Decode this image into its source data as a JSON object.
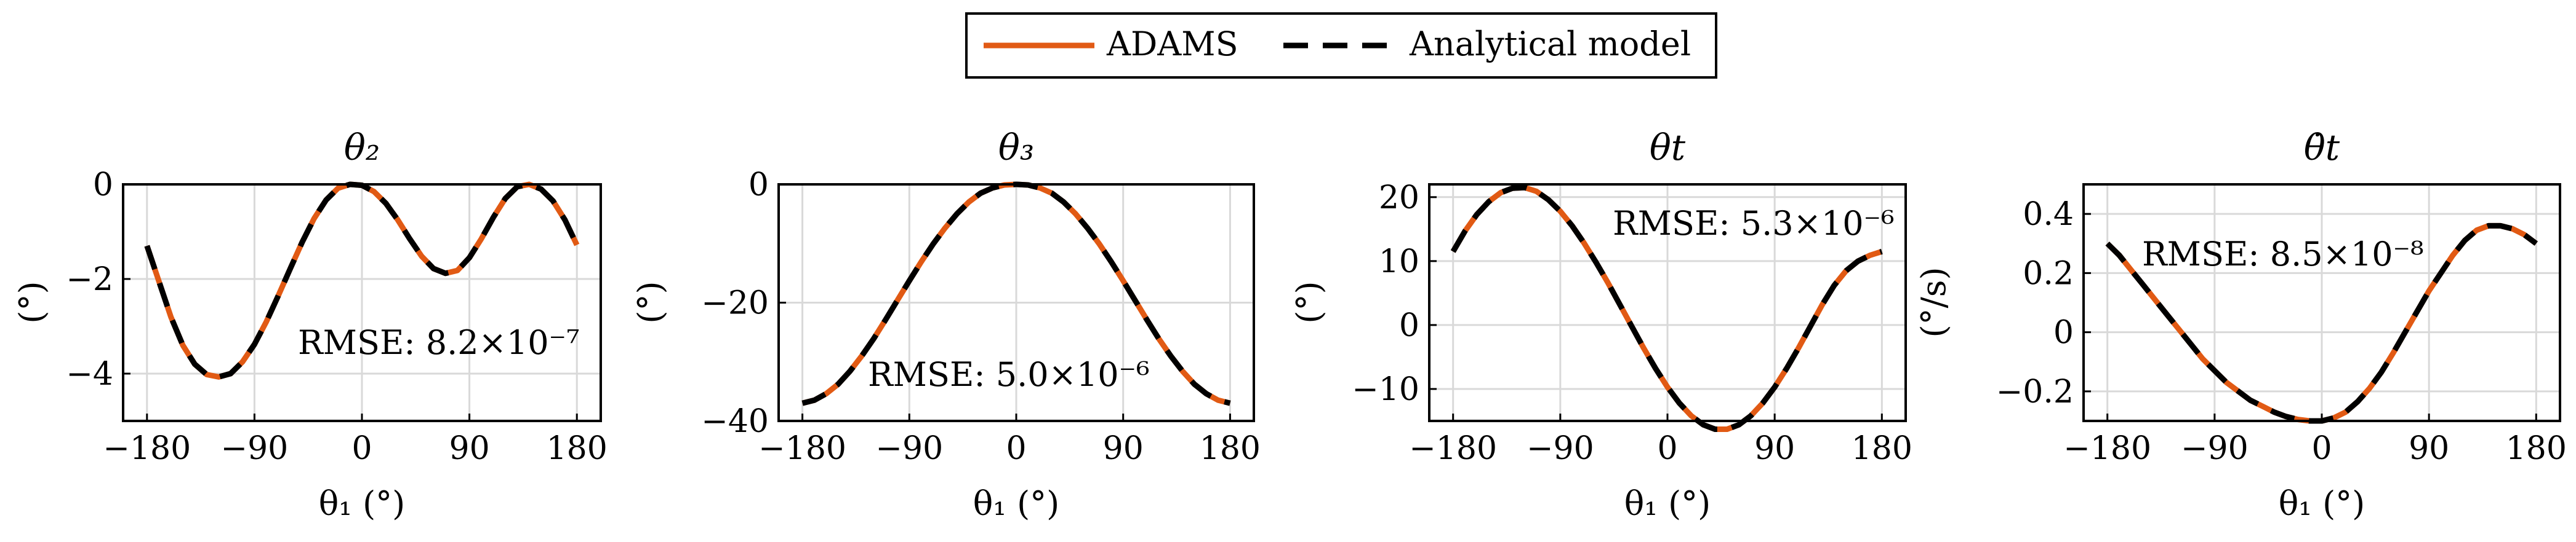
{
  "legend": {
    "items": [
      {
        "label": "ADAMS",
        "color": "#E15A14",
        "style": "solid"
      },
      {
        "label": "Analytical model",
        "color": "#000000",
        "style": "dashed"
      }
    ]
  },
  "chart_data": [
    {
      "type": "line",
      "title": "θ₂",
      "xlabel": "θ₁ (°)",
      "ylabel": "(°)",
      "xlim": [
        -200,
        200
      ],
      "ylim": [
        -5,
        0
      ],
      "xticks": [
        "−180",
        "−90",
        "0",
        "90",
        "180"
      ],
      "yticks": [
        "−4",
        "−2",
        "0"
      ],
      "ytick_values": [
        -4,
        -2,
        0
      ],
      "grid": true,
      "annotation": "RMSE: 8.2×10⁻⁷",
      "x": [
        -180,
        -170,
        -160,
        -150,
        -140,
        -130,
        -120,
        -110,
        -100,
        -90,
        -80,
        -70,
        -60,
        -50,
        -40,
        -30,
        -20,
        -10,
        0,
        10,
        20,
        30,
        40,
        50,
        60,
        70,
        80,
        90,
        100,
        110,
        120,
        130,
        140,
        150,
        160,
        170,
        180
      ],
      "series": [
        {
          "name": "ADAMS",
          "values": [
            -1.3,
            -2.05,
            -2.8,
            -3.4,
            -3.8,
            -4.02,
            -4.07,
            -4.0,
            -3.75,
            -3.38,
            -2.9,
            -2.35,
            -1.78,
            -1.22,
            -0.72,
            -0.33,
            -0.08,
            0.0,
            -0.02,
            -0.15,
            -0.4,
            -0.75,
            -1.15,
            -1.52,
            -1.78,
            -1.88,
            -1.82,
            -1.55,
            -1.15,
            -0.7,
            -0.3,
            -0.05,
            0.0,
            -0.1,
            -0.35,
            -0.75,
            -1.28
          ]
        },
        {
          "name": "Analytical model",
          "values": [
            -1.3,
            -2.05,
            -2.8,
            -3.4,
            -3.8,
            -4.02,
            -4.07,
            -4.0,
            -3.75,
            -3.38,
            -2.9,
            -2.35,
            -1.78,
            -1.22,
            -0.72,
            -0.33,
            -0.08,
            0.0,
            -0.02,
            -0.15,
            -0.4,
            -0.75,
            -1.15,
            -1.52,
            -1.78,
            -1.88,
            -1.82,
            -1.55,
            -1.15,
            -0.7,
            -0.3,
            -0.05,
            0.0,
            -0.1,
            -0.35,
            -0.75,
            -1.28
          ]
        }
      ]
    },
    {
      "type": "line",
      "title": "θ₃",
      "xlabel": "θ₁ (°)",
      "ylabel": "(°)",
      "xlim": [
        -200,
        200
      ],
      "ylim": [
        -40,
        0
      ],
      "xticks": [
        "−180",
        "−90",
        "0",
        "90",
        "180"
      ],
      "yticks": [
        "−40",
        "−20",
        "0"
      ],
      "ytick_values": [
        -40,
        -20,
        0
      ],
      "grid": true,
      "annotation": "RMSE: 5.0×10⁻⁶",
      "x": [
        -180,
        -170,
        -160,
        -150,
        -140,
        -130,
        -120,
        -110,
        -100,
        -90,
        -80,
        -70,
        -60,
        -50,
        -40,
        -30,
        -20,
        -10,
        0,
        10,
        20,
        30,
        40,
        50,
        60,
        70,
        80,
        90,
        100,
        110,
        120,
        130,
        140,
        150,
        160,
        170,
        180
      ],
      "series": [
        {
          "name": "ADAMS",
          "values": [
            -37.0,
            -36.5,
            -35.4,
            -33.8,
            -31.6,
            -29.0,
            -26.1,
            -22.9,
            -19.6,
            -16.3,
            -13.1,
            -10.1,
            -7.4,
            -5.0,
            -3.0,
            -1.5,
            -0.6,
            -0.1,
            0.0,
            -0.1,
            -0.6,
            -1.5,
            -3.0,
            -5.0,
            -7.4,
            -10.1,
            -13.1,
            -16.3,
            -19.6,
            -22.9,
            -26.1,
            -29.0,
            -31.6,
            -33.8,
            -35.4,
            -36.5,
            -37.0
          ]
        },
        {
          "name": "Analytical model",
          "values": [
            -37.0,
            -36.5,
            -35.4,
            -33.8,
            -31.6,
            -29.0,
            -26.1,
            -22.9,
            -19.6,
            -16.3,
            -13.1,
            -10.1,
            -7.4,
            -5.0,
            -3.0,
            -1.5,
            -0.6,
            -0.1,
            0.0,
            -0.1,
            -0.6,
            -1.5,
            -3.0,
            -5.0,
            -7.4,
            -10.1,
            -13.1,
            -16.3,
            -19.6,
            -22.9,
            -26.1,
            -29.0,
            -31.6,
            -33.8,
            -35.4,
            -36.5,
            -37.0
          ]
        }
      ]
    },
    {
      "type": "line",
      "title": "θt",
      "xlabel": "θ₁ (°)",
      "ylabel": "(°)",
      "xlim": [
        -200,
        200
      ],
      "ylim": [
        -15,
        22
      ],
      "xticks": [
        "−180",
        "−90",
        "0",
        "90",
        "180"
      ],
      "yticks": [
        "−10",
        "0",
        "10",
        "20"
      ],
      "ytick_values": [
        -10,
        0,
        10,
        20
      ],
      "grid": true,
      "annotation": "RMSE: 5.3×10⁻⁶",
      "x": [
        -180,
        -170,
        -160,
        -150,
        -140,
        -130,
        -120,
        -110,
        -100,
        -90,
        -80,
        -70,
        -60,
        -50,
        -40,
        -30,
        -20,
        -10,
        0,
        10,
        20,
        30,
        40,
        50,
        60,
        70,
        80,
        90,
        100,
        110,
        120,
        130,
        140,
        150,
        160,
        170,
        180
      ],
      "series": [
        {
          "name": "ADAMS",
          "values": [
            11.5,
            14.7,
            17.3,
            19.3,
            20.7,
            21.4,
            21.5,
            20.9,
            19.6,
            17.8,
            15.5,
            12.8,
            9.8,
            6.6,
            3.2,
            -0.2,
            -3.6,
            -6.8,
            -9.7,
            -12.2,
            -14.2,
            -15.6,
            -16.3,
            -16.3,
            -15.6,
            -14.2,
            -12.2,
            -9.7,
            -6.8,
            -3.6,
            -0.2,
            3.2,
            6.2,
            8.5,
            10.0,
            10.9,
            11.5
          ]
        },
        {
          "name": "Analytical model",
          "values": [
            11.5,
            14.7,
            17.3,
            19.3,
            20.7,
            21.4,
            21.5,
            20.9,
            19.6,
            17.8,
            15.5,
            12.8,
            9.8,
            6.6,
            3.2,
            -0.2,
            -3.6,
            -6.8,
            -9.7,
            -12.2,
            -14.2,
            -15.6,
            -16.3,
            -16.3,
            -15.6,
            -14.2,
            -12.2,
            -9.7,
            -6.8,
            -3.6,
            -0.2,
            3.2,
            6.2,
            8.5,
            10.0,
            10.9,
            11.5
          ]
        }
      ]
    },
    {
      "type": "line",
      "title": "θ̇t",
      "xlabel": "θ₁ (°)",
      "ylabel": "(°/s)",
      "xlim": [
        -200,
        200
      ],
      "ylim": [
        -0.3,
        0.5
      ],
      "xticks": [
        "−180",
        "−90",
        "0",
        "90",
        "180"
      ],
      "yticks": [
        "−0.2",
        "0",
        "0.2",
        "0.4"
      ],
      "ytick_values": [
        -0.2,
        0,
        0.2,
        0.4
      ],
      "grid": true,
      "annotation": "RMSE: 8.5×10⁻⁸",
      "x": [
        -180,
        -170,
        -160,
        -150,
        -140,
        -130,
        -120,
        -110,
        -100,
        -90,
        -80,
        -70,
        -60,
        -50,
        -40,
        -30,
        -20,
        -10,
        0,
        10,
        20,
        30,
        40,
        50,
        60,
        70,
        80,
        90,
        100,
        110,
        120,
        130,
        140,
        150,
        160,
        170,
        180
      ],
      "series": [
        {
          "name": "ADAMS",
          "values": [
            0.3,
            0.26,
            0.21,
            0.16,
            0.11,
            0.06,
            0.01,
            -0.04,
            -0.09,
            -0.13,
            -0.17,
            -0.2,
            -0.23,
            -0.25,
            -0.27,
            -0.285,
            -0.295,
            -0.3,
            -0.3,
            -0.29,
            -0.27,
            -0.235,
            -0.19,
            -0.135,
            -0.07,
            0.0,
            0.07,
            0.14,
            0.2,
            0.26,
            0.31,
            0.345,
            0.36,
            0.36,
            0.35,
            0.33,
            0.3
          ]
        },
        {
          "name": "Analytical model",
          "values": [
            0.3,
            0.26,
            0.21,
            0.16,
            0.11,
            0.06,
            0.01,
            -0.04,
            -0.09,
            -0.13,
            -0.17,
            -0.2,
            -0.23,
            -0.25,
            -0.27,
            -0.285,
            -0.295,
            -0.3,
            -0.3,
            -0.29,
            -0.27,
            -0.235,
            -0.19,
            -0.135,
            -0.07,
            0.0,
            0.07,
            0.14,
            0.2,
            0.26,
            0.31,
            0.345,
            0.36,
            0.36,
            0.35,
            0.33,
            0.3
          ]
        }
      ]
    }
  ]
}
